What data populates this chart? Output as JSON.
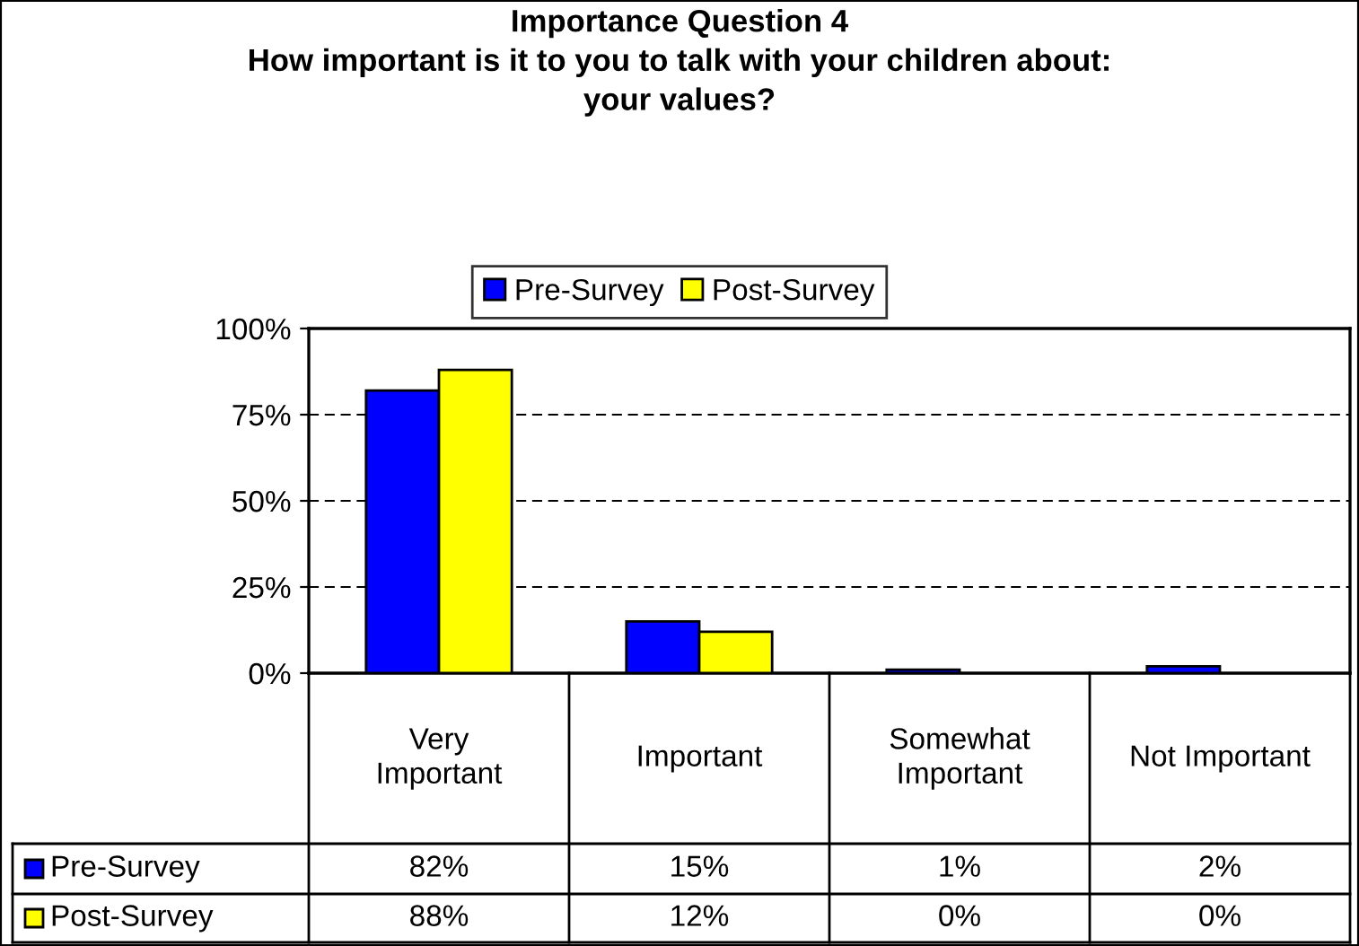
{
  "chart_data": {
    "type": "bar",
    "title": "Importance Question 4\nHow important is it to you to talk with your children about:\nyour values?",
    "categories": [
      "Very\nImportant",
      "Important",
      "Somewhat\nImportant",
      "Not Important"
    ],
    "series": [
      {
        "name": "Pre-Survey",
        "color": "#0000ff",
        "values": [
          82,
          15,
          1,
          2
        ],
        "value_labels": [
          "82%",
          "15%",
          "1%",
          "2%"
        ]
      },
      {
        "name": "Post-Survey",
        "color": "#ffff00",
        "values": [
          88,
          12,
          0,
          0
        ],
        "value_labels": [
          "88%",
          "12%",
          "0%",
          "0%"
        ]
      }
    ],
    "ylim": [
      0,
      100
    ],
    "yticks": [
      {
        "value": 0,
        "label": "0%"
      },
      {
        "value": 25,
        "label": "25%"
      },
      {
        "value": 50,
        "label": "50%"
      },
      {
        "value": 75,
        "label": "75%"
      },
      {
        "value": 100,
        "label": "100%"
      }
    ],
    "grid": "y",
    "line_style": "dashed",
    "legend": "top"
  }
}
